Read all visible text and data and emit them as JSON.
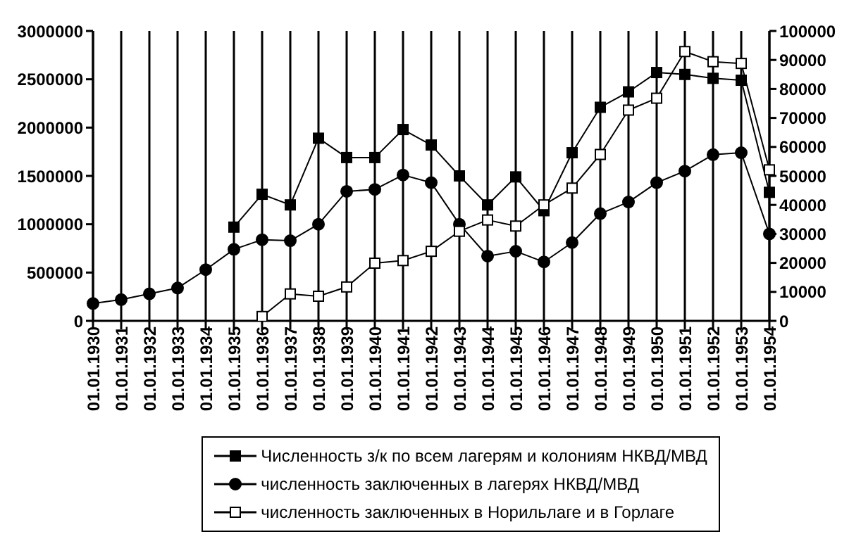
{
  "chart_data": {
    "type": "line",
    "categories": [
      "01.01.1930",
      "01.01.1931",
      "01.01.1932",
      "01.01.1933",
      "01.01.1934",
      "01.01.1935",
      "01.01.1936",
      "01.01.1937",
      "01.01.1938",
      "01.01.1939",
      "01.01.1940",
      "01.01.1941",
      "01.01.1942",
      "01.01.1943",
      "01.01.1944",
      "01.01.1945",
      "01.01.1946",
      "01.01.1947",
      "01.01.1948",
      "01.01.1949",
      "01.01.1950",
      "01.01.1951",
      "01.01.1952",
      "01.01.1953",
      "01.01.1954"
    ],
    "series": [
      {
        "name": "Численность з/к по всем лагерям и колониям НКВД/МВД",
        "color": "#000000",
        "marker": "square",
        "values": [
          null,
          null,
          null,
          null,
          null,
          970000,
          1310000,
          1200000,
          1890000,
          1690000,
          1690000,
          1980000,
          1820000,
          1500000,
          1200000,
          1490000,
          1140000,
          1740000,
          2210000,
          2370000,
          2570000,
          2550000,
          2510000,
          2490000,
          1330000
        ]
      },
      {
        "name": "численность заключенных в лагерях НКВД/МВД",
        "color": "#000000",
        "marker": "circle",
        "values": [
          180000,
          220000,
          280000,
          340000,
          530000,
          740000,
          840000,
          830000,
          1000000,
          1340000,
          1360000,
          1510000,
          1430000,
          1000000,
          670000,
          720000,
          610000,
          810000,
          1110000,
          1230000,
          1430000,
          1550000,
          1720000,
          1740000,
          900000
        ]
      },
      {
        "name": "численность заключенных в Норильлаге и в Горлаге",
        "color": "#000000",
        "marker": "square",
        "axis": "y2",
        "values": [
          null,
          null,
          null,
          null,
          null,
          null,
          1500,
          9300,
          8500,
          11700,
          19900,
          20800,
          24000,
          30900,
          34800,
          32700,
          40000,
          45800,
          57400,
          72700,
          76800,
          92900,
          89400,
          88800,
          52100
        ]
      }
    ],
    "ylim": [
      0,
      3000000
    ],
    "yticks": [
      0,
      500000,
      1000000,
      1500000,
      2000000,
      2500000,
      3000000
    ],
    "y2lim": [
      0,
      100000
    ],
    "y2ticks": [
      0,
      10000,
      20000,
      30000,
      40000,
      50000,
      60000,
      70000,
      80000,
      90000,
      100000
    ],
    "grid": "x",
    "legend": "bottom"
  }
}
